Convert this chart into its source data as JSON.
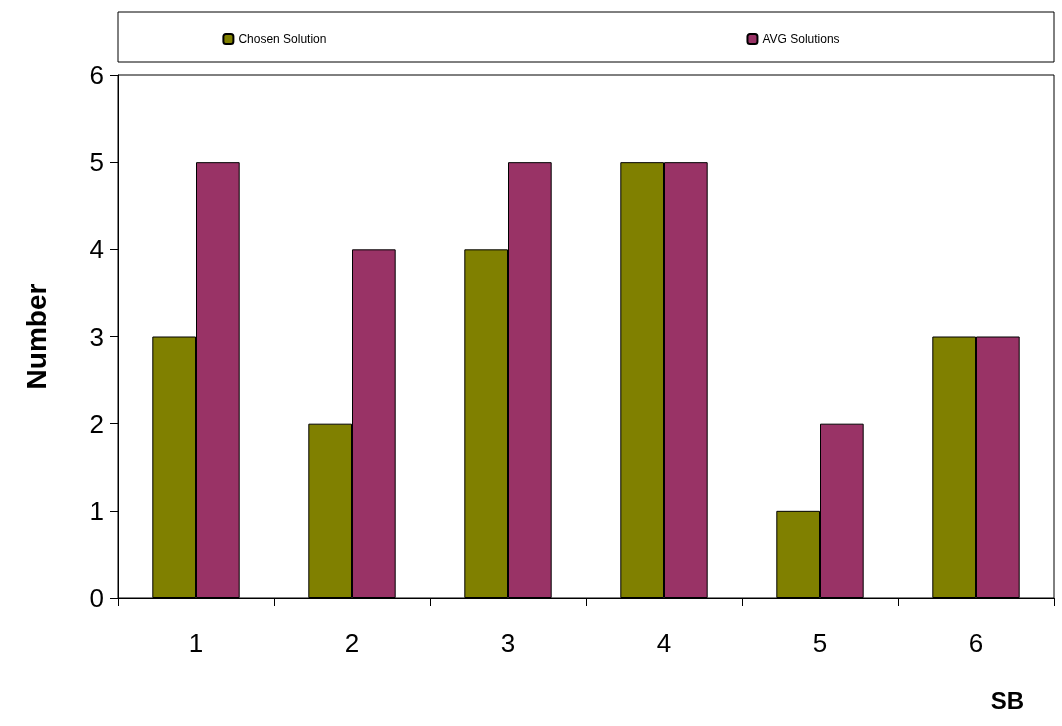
{
  "chart_data": {
    "type": "bar",
    "xlabel": "SB",
    "ylabel": "Number",
    "categories": [
      "1",
      "2",
      "3",
      "4",
      "5",
      "6"
    ],
    "series": [
      {
        "name": "Chosen Solution",
        "color": "#808000",
        "values": [
          3,
          2,
          4,
          5,
          1,
          3
        ]
      },
      {
        "name": "AVG Solutions",
        "color": "#993366",
        "values": [
          5,
          4,
          5,
          5,
          2,
          3
        ]
      }
    ],
    "ylim": [
      0,
      6
    ],
    "yticks": [
      0,
      1,
      2,
      3,
      4,
      5,
      6
    ],
    "grid": false,
    "legend": "top"
  }
}
